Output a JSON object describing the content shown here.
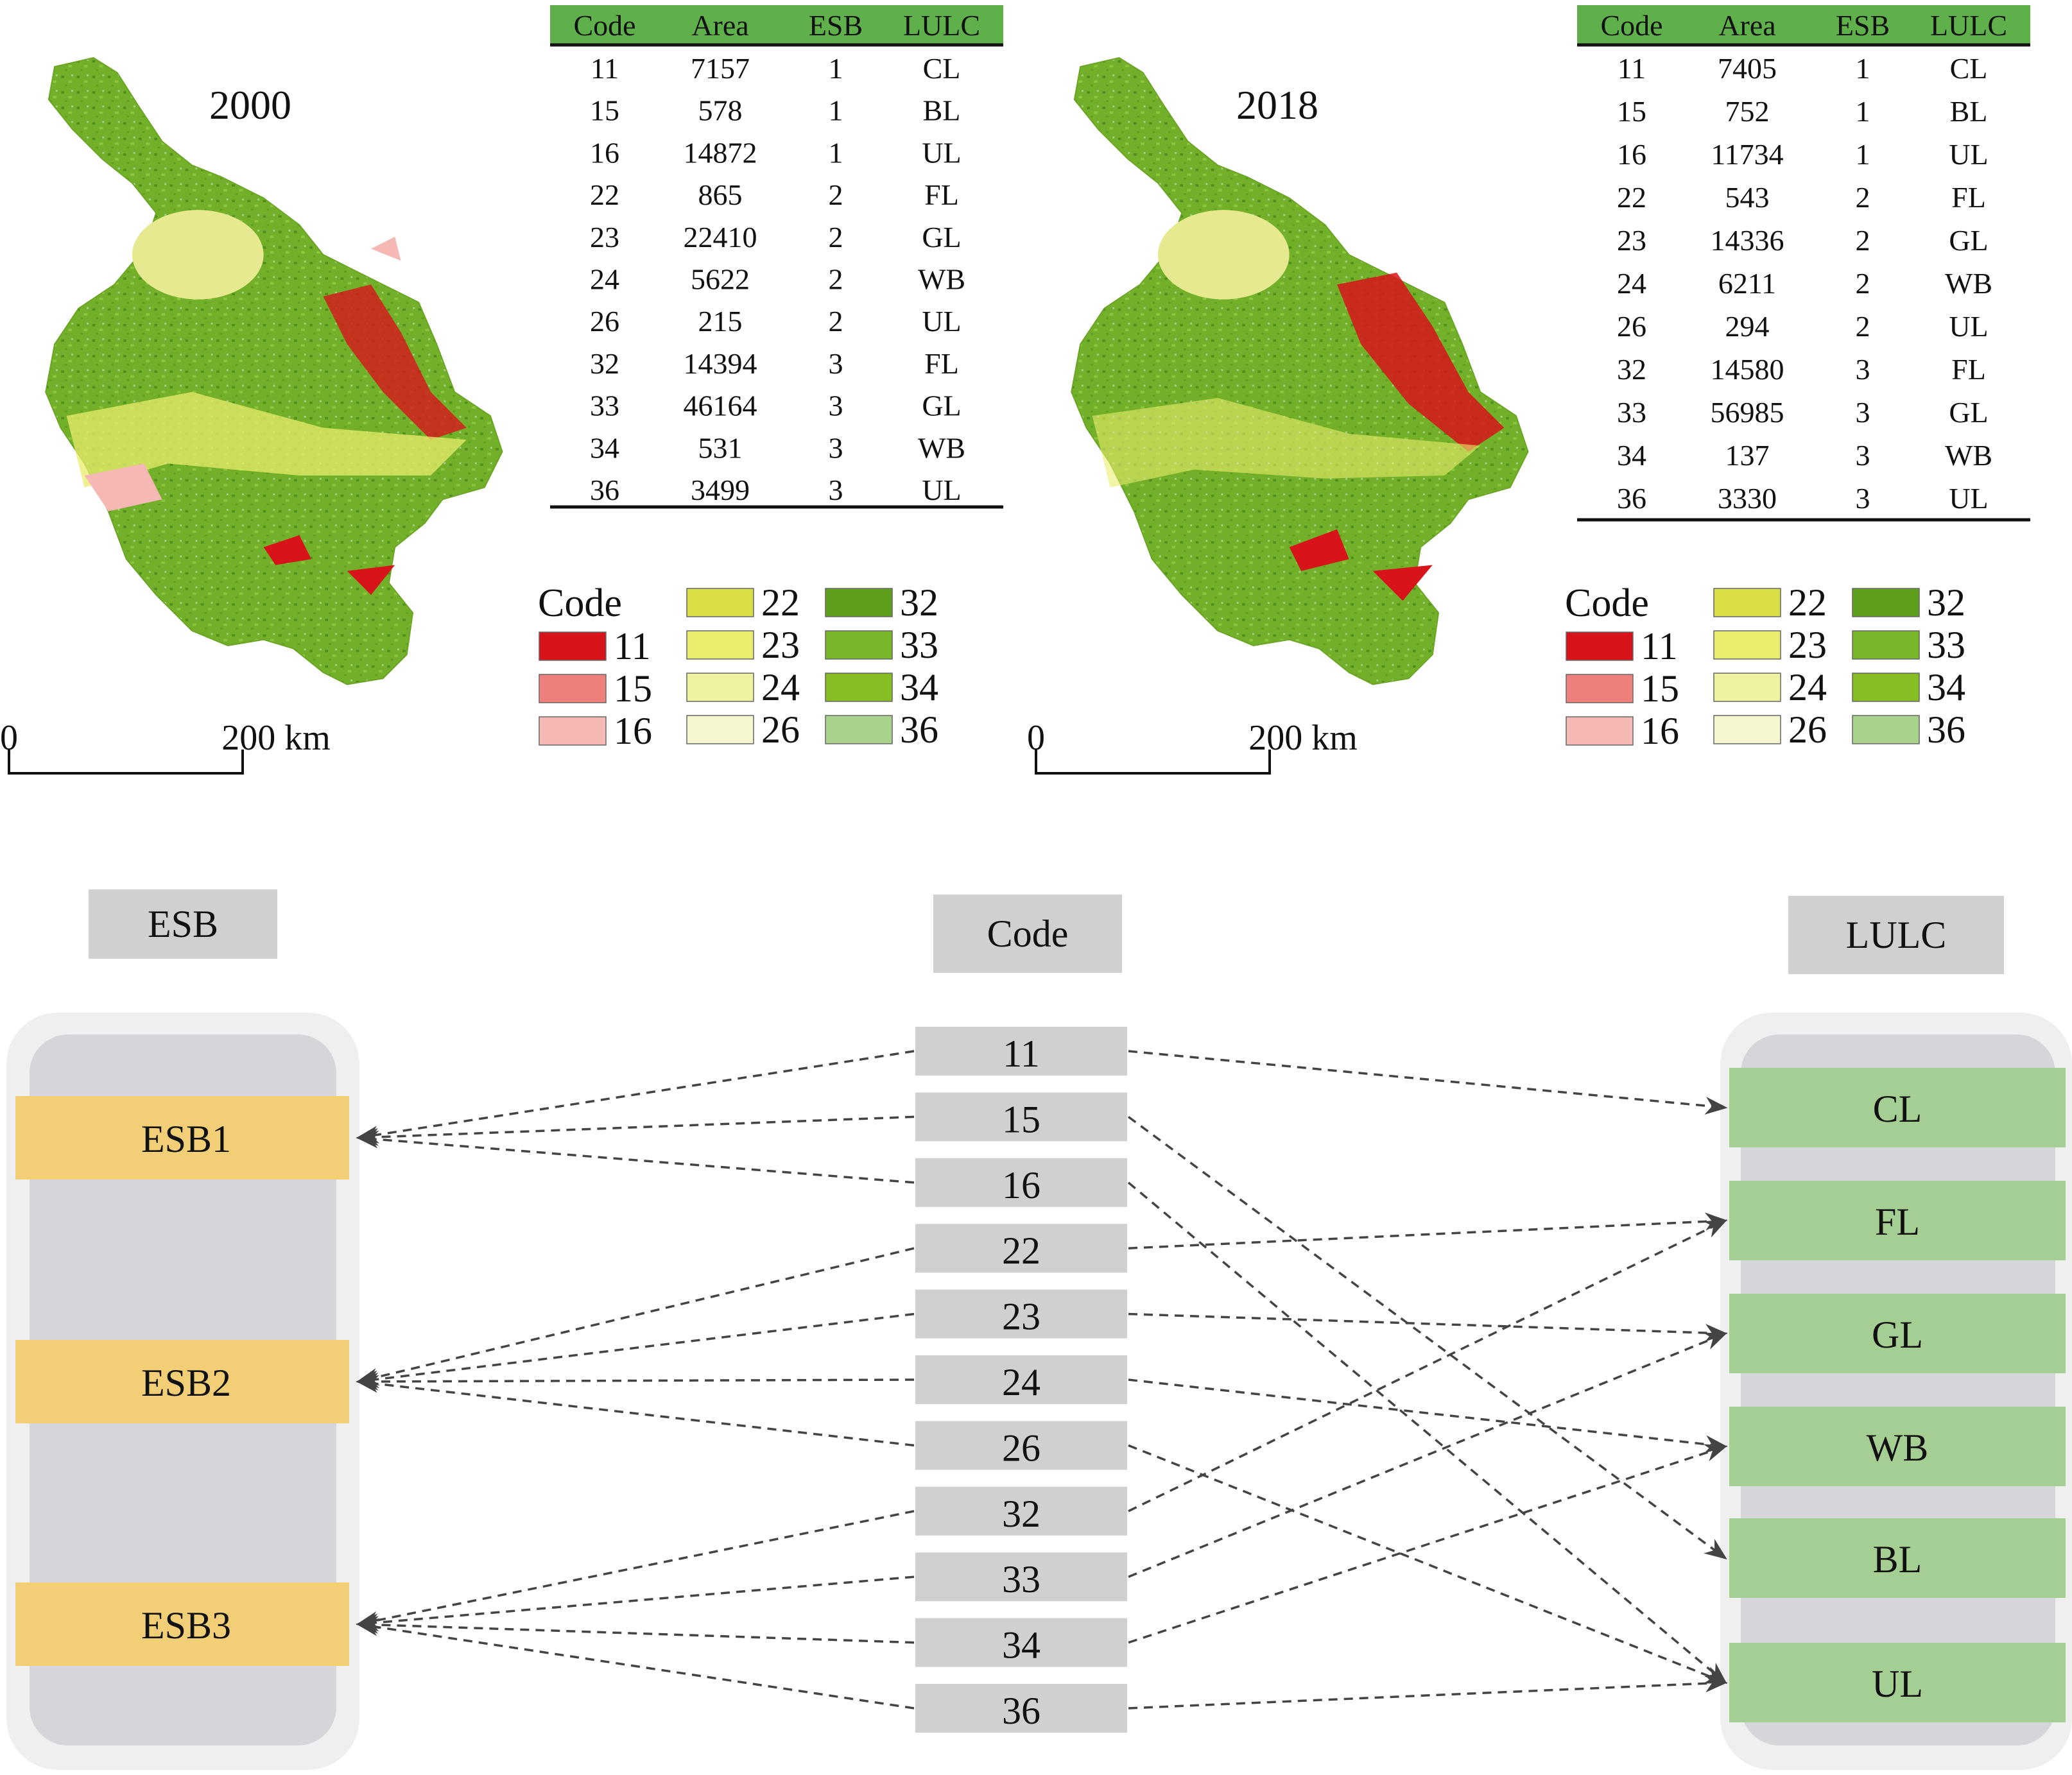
{
  "panels": [
    {
      "year": "2000",
      "scale": {
        "zero": "0",
        "label": "200 km"
      },
      "table": {
        "headers": [
          "Code",
          "Area",
          "ESB",
          "LULC"
        ],
        "rows": [
          [
            "11",
            "7157",
            "1",
            "CL"
          ],
          [
            "15",
            "578",
            "1",
            "BL"
          ],
          [
            "16",
            "14872",
            "1",
            "UL"
          ],
          [
            "22",
            "865",
            "2",
            "FL"
          ],
          [
            "23",
            "22410",
            "2",
            "GL"
          ],
          [
            "24",
            "5622",
            "2",
            "WB"
          ],
          [
            "26",
            "215",
            "2",
            "UL"
          ],
          [
            "32",
            "14394",
            "3",
            "FL"
          ],
          [
            "33",
            "46164",
            "3",
            "GL"
          ],
          [
            "34",
            "531",
            "3",
            "WB"
          ],
          [
            "36",
            "3499",
            "3",
            "UL"
          ]
        ]
      }
    },
    {
      "year": "2018",
      "scale": {
        "zero": "0",
        "label": "200 km"
      },
      "table": {
        "headers": [
          "Code",
          "Area",
          "ESB",
          "LULC"
        ],
        "rows": [
          [
            "11",
            "7405",
            "1",
            "CL"
          ],
          [
            "15",
            "752",
            "1",
            "BL"
          ],
          [
            "16",
            "11734",
            "1",
            "UL"
          ],
          [
            "22",
            "543",
            "2",
            "FL"
          ],
          [
            "23",
            "14336",
            "2",
            "GL"
          ],
          [
            "24",
            "6211",
            "2",
            "WB"
          ],
          [
            "26",
            "294",
            "2",
            "UL"
          ],
          [
            "32",
            "14580",
            "3",
            "FL"
          ],
          [
            "33",
            "56985",
            "3",
            "GL"
          ],
          [
            "34",
            "137",
            "3",
            "WB"
          ],
          [
            "36",
            "3330",
            "3",
            "UL"
          ]
        ]
      }
    }
  ],
  "legend": {
    "title": "Code",
    "items": [
      {
        "code": "11",
        "color": "#d7141a"
      },
      {
        "code": "15",
        "color": "#ee7f7b"
      },
      {
        "code": "16",
        "color": "#f5b8b5"
      },
      {
        "code": "22",
        "color": "#d9df45"
      },
      {
        "code": "23",
        "color": "#e9ec6c"
      },
      {
        "code": "24",
        "color": "#eef3a0"
      },
      {
        "code": "26",
        "color": "#f6f7cf"
      },
      {
        "code": "32",
        "color": "#5e9f1c"
      },
      {
        "code": "33",
        "color": "#78b62a"
      },
      {
        "code": "34",
        "color": "#86bd22"
      },
      {
        "code": "36",
        "color": "#a9d28c"
      }
    ]
  },
  "diagram": {
    "esb_header": "ESB",
    "code_header": "Code",
    "lulc_header": "LULC",
    "esb_items": [
      "ESB1",
      "ESB2",
      "ESB3"
    ],
    "codes": [
      "11",
      "15",
      "16",
      "22",
      "23",
      "24",
      "26",
      "32",
      "33",
      "34",
      "36"
    ],
    "lulc_items": [
      "CL",
      "FL",
      "GL",
      "WB",
      "BL",
      "UL"
    ],
    "links": [
      {
        "code": "11",
        "esb": "ESB1",
        "lulc": "CL"
      },
      {
        "code": "15",
        "esb": "ESB1",
        "lulc": "BL"
      },
      {
        "code": "16",
        "esb": "ESB1",
        "lulc": "UL"
      },
      {
        "code": "22",
        "esb": "ESB2",
        "lulc": "FL"
      },
      {
        "code": "23",
        "esb": "ESB2",
        "lulc": "GL"
      },
      {
        "code": "24",
        "esb": "ESB2",
        "lulc": "WB"
      },
      {
        "code": "26",
        "esb": "ESB2",
        "lulc": "UL"
      },
      {
        "code": "32",
        "esb": "ESB3",
        "lulc": "FL"
      },
      {
        "code": "33",
        "esb": "ESB3",
        "lulc": "GL"
      },
      {
        "code": "34",
        "esb": "ESB3",
        "lulc": "WB"
      },
      {
        "code": "36",
        "esb": "ESB3",
        "lulc": "UL"
      }
    ]
  },
  "colors": {
    "table_header": "#5fb04b",
    "header_box": "#d2cfd3",
    "panel_outer": "#efefef",
    "panel_inner": "#d6d5d9",
    "esb_fill": "#f2ce76",
    "lulc_fill": "#a5cf92",
    "arrow": "#444444"
  }
}
